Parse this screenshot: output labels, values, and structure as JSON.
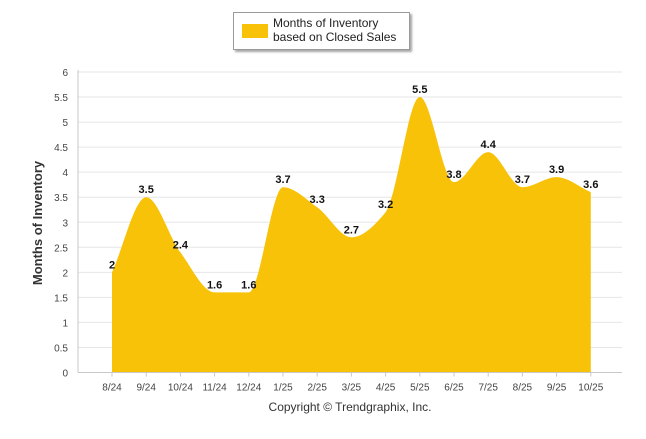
{
  "chart_data": {
    "type": "area",
    "categories": [
      "8/24",
      "9/24",
      "10/24",
      "11/24",
      "12/24",
      "1/25",
      "2/25",
      "3/25",
      "4/25",
      "5/25",
      "6/25",
      "7/25",
      "8/25",
      "9/25",
      "10/25"
    ],
    "series": [
      {
        "name": "Months of Inventory based on Closed Sales",
        "values": [
          2,
          3.5,
          2.4,
          1.6,
          1.6,
          3.7,
          3.3,
          2.7,
          3.2,
          5.5,
          3.8,
          4.4,
          3.7,
          3.9,
          3.6
        ],
        "labels": [
          "2",
          "3.5",
          "2.4",
          "1.6",
          "1.6",
          "3.7",
          "3.3",
          "2.7",
          "3.2",
          "5.5",
          "3.8",
          "4.4",
          "3.7",
          "3.9",
          "3.6"
        ]
      }
    ],
    "ylabel": "Months of Inventory",
    "xlabel": "",
    "ylim": [
      0,
      6
    ],
    "yticks": [
      "0",
      "0.5",
      "1",
      "1.5",
      "2",
      "2.5",
      "3",
      "3.5",
      "4",
      "4.5",
      "5",
      "5.5",
      "6"
    ],
    "grid": true,
    "legend": "top-center",
    "colors": {
      "fill": "#f7c208",
      "grid": "#e6e6e6",
      "axis": "#c8c8c8",
      "text": "#333333"
    }
  },
  "legend": {
    "label": "Months of Inventory based on Closed Sales"
  },
  "footer": {
    "copyright": "Copyright © Trendgraphix, Inc."
  }
}
